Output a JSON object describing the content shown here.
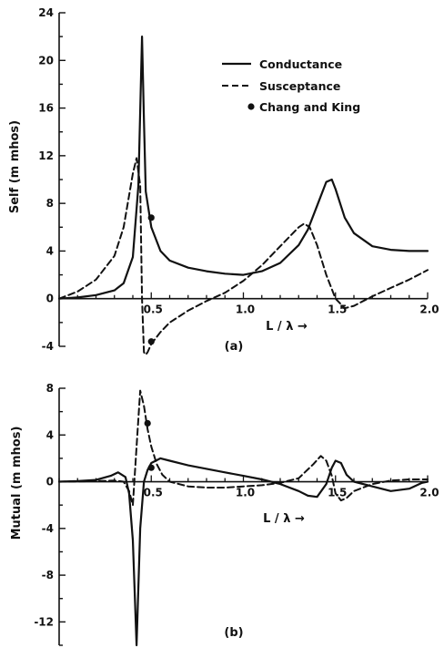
{
  "chart_data": [
    {
      "type": "line",
      "panel_label": "(a)",
      "xlabel": "L / λ →",
      "ylabel": "Self (m mhos)",
      "xlim": [
        0,
        2.0
      ],
      "ylim": [
        -4,
        24
      ],
      "x_ticks": [
        "0.5",
        "1.0",
        "1.5",
        "2.0"
      ],
      "x_tick_values": [
        0.5,
        1.0,
        1.5,
        2.0
      ],
      "y_ticks": [
        "-4",
        "0",
        "4",
        "8",
        "12",
        "16",
        "20",
        "24"
      ],
      "y_tick_values": [
        -4,
        0,
        4,
        8,
        12,
        16,
        20,
        24
      ],
      "legend_position": "top-right",
      "series": [
        {
          "name": "Conductance",
          "style": "solid",
          "x": [
            0,
            0.1,
            0.2,
            0.3,
            0.35,
            0.4,
            0.43,
            0.45,
            0.46,
            0.47,
            0.5,
            0.55,
            0.6,
            0.7,
            0.8,
            0.9,
            1.0,
            1.1,
            1.2,
            1.3,
            1.35,
            1.4,
            1.45,
            1.48,
            1.5,
            1.55,
            1.6,
            1.7,
            1.8,
            1.9,
            2.0
          ],
          "y": [
            0,
            0.1,
            0.3,
            0.7,
            1.3,
            3.5,
            9.5,
            22.0,
            15.0,
            9.0,
            6.0,
            4.0,
            3.2,
            2.6,
            2.3,
            2.1,
            2.0,
            2.3,
            3.0,
            4.5,
            5.8,
            7.8,
            9.8,
            10.0,
            9.2,
            6.8,
            5.5,
            4.4,
            4.1,
            4.0,
            4.0
          ]
        },
        {
          "name": "Susceptance",
          "style": "dashed",
          "x": [
            0,
            0.1,
            0.2,
            0.3,
            0.35,
            0.4,
            0.42,
            0.44,
            0.45,
            0.46,
            0.47,
            0.48,
            0.5,
            0.55,
            0.6,
            0.7,
            0.8,
            0.9,
            1.0,
            1.1,
            1.2,
            1.3,
            1.33,
            1.36,
            1.4,
            1.45,
            1.5,
            1.55,
            1.6,
            1.7,
            1.8,
            1.9,
            2.0
          ],
          "y": [
            0,
            0.6,
            1.6,
            3.6,
            6.0,
            10.5,
            11.8,
            9.5,
            0.0,
            -4.5,
            -4.7,
            -4.5,
            -3.8,
            -2.8,
            -2.0,
            -1.0,
            -0.2,
            0.5,
            1.5,
            2.8,
            4.4,
            6.0,
            6.3,
            6.0,
            4.5,
            2.0,
            0.0,
            -0.8,
            -0.6,
            0.2,
            0.9,
            1.6,
            2.4
          ]
        }
      ],
      "chang_and_king": [
        {
          "x": 0.5,
          "y": 6.8
        },
        {
          "x": 0.5,
          "y": -3.6
        }
      ]
    },
    {
      "type": "line",
      "panel_label": "(b)",
      "xlabel": "L / λ →",
      "ylabel": "Mutual (m mhos)",
      "xlim": [
        0,
        2.0
      ],
      "ylim": [
        -14,
        8
      ],
      "x_ticks": [
        "0.5",
        "1.0",
        "1.5",
        "2.0"
      ],
      "x_tick_values": [
        0.5,
        1.0,
        1.5,
        2.0
      ],
      "y_ticks": [
        "-12",
        "-8",
        "-4",
        "0",
        "4",
        "8"
      ],
      "y_tick_values": [
        -12,
        -8,
        -4,
        0,
        4,
        8
      ],
      "series": [
        {
          "name": "Conductance",
          "style": "solid",
          "x": [
            0,
            0.1,
            0.2,
            0.28,
            0.32,
            0.36,
            0.38,
            0.4,
            0.42,
            0.44,
            0.46,
            0.48,
            0.5,
            0.55,
            0.6,
            0.7,
            0.8,
            0.9,
            1.0,
            1.1,
            1.2,
            1.3,
            1.35,
            1.4,
            1.45,
            1.48,
            1.5,
            1.53,
            1.56,
            1.6,
            1.7,
            1.8,
            1.9,
            1.97,
            2.0
          ],
          "y": [
            0,
            0.05,
            0.15,
            0.5,
            0.8,
            0.4,
            -1.0,
            -5.0,
            -14.0,
            -4.0,
            0.0,
            1.0,
            1.6,
            2.0,
            1.8,
            1.4,
            1.1,
            0.8,
            0.5,
            0.2,
            -0.2,
            -0.8,
            -1.2,
            -1.3,
            -0.2,
            1.2,
            1.8,
            1.6,
            0.6,
            0.0,
            -0.4,
            -0.8,
            -0.6,
            -0.1,
            0.0
          ]
        },
        {
          "name": "Susceptance",
          "style": "dashed",
          "x": [
            0,
            0.1,
            0.2,
            0.3,
            0.35,
            0.38,
            0.4,
            0.42,
            0.44,
            0.46,
            0.48,
            0.5,
            0.53,
            0.56,
            0.6,
            0.7,
            0.8,
            0.9,
            1.0,
            1.1,
            1.2,
            1.3,
            1.38,
            1.42,
            1.45,
            1.48,
            1.5,
            1.53,
            1.56,
            1.6,
            1.7,
            1.8,
            1.9,
            2.0
          ],
          "y": [
            0,
            0.02,
            0.05,
            0.1,
            0.0,
            -0.8,
            -2.0,
            3.0,
            7.8,
            6.5,
            4.5,
            3.0,
            1.5,
            0.6,
            0.0,
            -0.4,
            -0.5,
            -0.5,
            -0.4,
            -0.3,
            -0.1,
            0.3,
            1.5,
            2.2,
            1.8,
            0.5,
            -1.0,
            -1.6,
            -1.4,
            -0.8,
            -0.2,
            0.1,
            0.2,
            0.2
          ]
        }
      ],
      "chang_and_king": [
        {
          "x": 0.48,
          "y": 5.0
        },
        {
          "x": 0.5,
          "y": 1.2
        }
      ]
    }
  ],
  "legend": {
    "items": [
      {
        "label": "Conductance",
        "style": "solid"
      },
      {
        "label": "Susceptance",
        "style": "dashed"
      },
      {
        "label": "Chang and King",
        "style": "dot"
      }
    ]
  },
  "colors": {
    "ink": "#111111",
    "background": "#ffffff"
  }
}
